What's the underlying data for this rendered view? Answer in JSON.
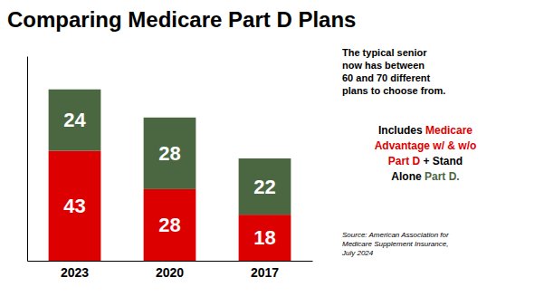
{
  "chart_data": {
    "type": "bar",
    "stacked": true,
    "title": "Comparing Medicare Part D Plans",
    "categories": [
      "2023",
      "2020",
      "2017"
    ],
    "series": [
      {
        "color": "#dd0000",
        "values": [
          43,
          28,
          18
        ]
      },
      {
        "color": "#4a6741",
        "values": [
          24,
          28,
          22
        ]
      }
    ],
    "ylim": [
      0,
      80
    ],
    "tick_labels": "x",
    "data_labels": true,
    "grid": false,
    "annotations": [
      {
        "text": "The typical senior\nnow has between\n60 and 70 different\nplans to choose from."
      },
      {
        "lines": [
          [
            {
              "text": "Includes ",
              "color": "#000000"
            },
            {
              "text": "Medicare",
              "color": "#dd0000"
            }
          ],
          [
            {
              "text": "Advantage w/ & w/o",
              "color": "#dd0000"
            }
          ],
          [
            {
              "text": "Part D",
              "color": "#dd0000"
            },
            {
              "text": " + Stand",
              "color": "#000000"
            }
          ],
          [
            {
              "text": "Alone ",
              "color": "#000000"
            },
            {
              "text": "Part D.",
              "color": "#4a6741"
            }
          ]
        ]
      }
    ],
    "source": "Source: American Association for\nMedicare Supplement Insurance,\nJuly 2024"
  }
}
